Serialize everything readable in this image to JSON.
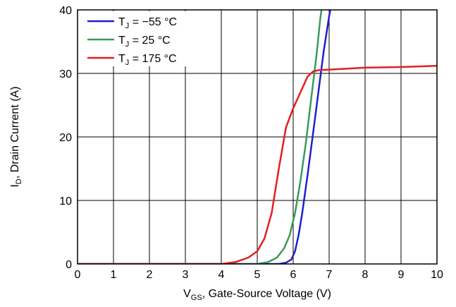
{
  "chart_data": {
    "type": "line",
    "xlabel": {
      "main": "V",
      "sub": "GS",
      "rest": ", Gate-Source Voltage (V)"
    },
    "ylabel": {
      "main": "I",
      "sub": "D",
      "rest": ", Drain Current (A)"
    },
    "xlim": [
      0,
      10
    ],
    "ylim": [
      0,
      40
    ],
    "xticks": [
      0,
      1,
      2,
      3,
      4,
      5,
      6,
      7,
      8,
      9,
      10
    ],
    "yticks": [
      0,
      10,
      20,
      30,
      40
    ],
    "grid": true,
    "legend_position": "top-left",
    "series": [
      {
        "name": {
          "main": "T",
          "sub": "J",
          "rest": " = −55 °C"
        },
        "color": "#1f1fd0",
        "x": [
          0,
          5.6,
          5.8,
          5.95,
          6.05,
          6.15,
          6.25,
          6.4,
          6.55,
          6.7,
          6.85,
          7.0,
          7.05
        ],
        "y": [
          0,
          0,
          0.2,
          0.7,
          2.0,
          4.5,
          8.0,
          14.0,
          20.5,
          27.0,
          33.5,
          39.0,
          40.5
        ]
      },
      {
        "name": {
          "main": "T",
          "sub": "J",
          "rest": " = 25 °C"
        },
        "color": "#3a9a5c",
        "x": [
          0,
          5.0,
          5.3,
          5.55,
          5.75,
          5.9,
          6.05,
          6.2,
          6.35,
          6.5,
          6.65,
          6.75,
          6.8
        ],
        "y": [
          0,
          0,
          0.3,
          1.0,
          2.5,
          4.5,
          8.0,
          13.0,
          19.0,
          26.0,
          33.0,
          38.5,
          40.5
        ]
      },
      {
        "name": {
          "main": "T",
          "sub": "J",
          "rest": " = 175 °C"
        },
        "color": "#e02020",
        "x": [
          0,
          4.0,
          4.4,
          4.75,
          5.0,
          5.2,
          5.4,
          5.6,
          5.8,
          6.0,
          6.2,
          6.4,
          6.55,
          6.7,
          7.0,
          8.0,
          9.0,
          10.0
        ],
        "y": [
          0,
          0,
          0.3,
          1.0,
          2.0,
          4.0,
          8.0,
          15.0,
          21.5,
          24.5,
          27.0,
          29.5,
          30.3,
          30.5,
          30.6,
          30.9,
          31.0,
          31.2
        ]
      }
    ]
  }
}
